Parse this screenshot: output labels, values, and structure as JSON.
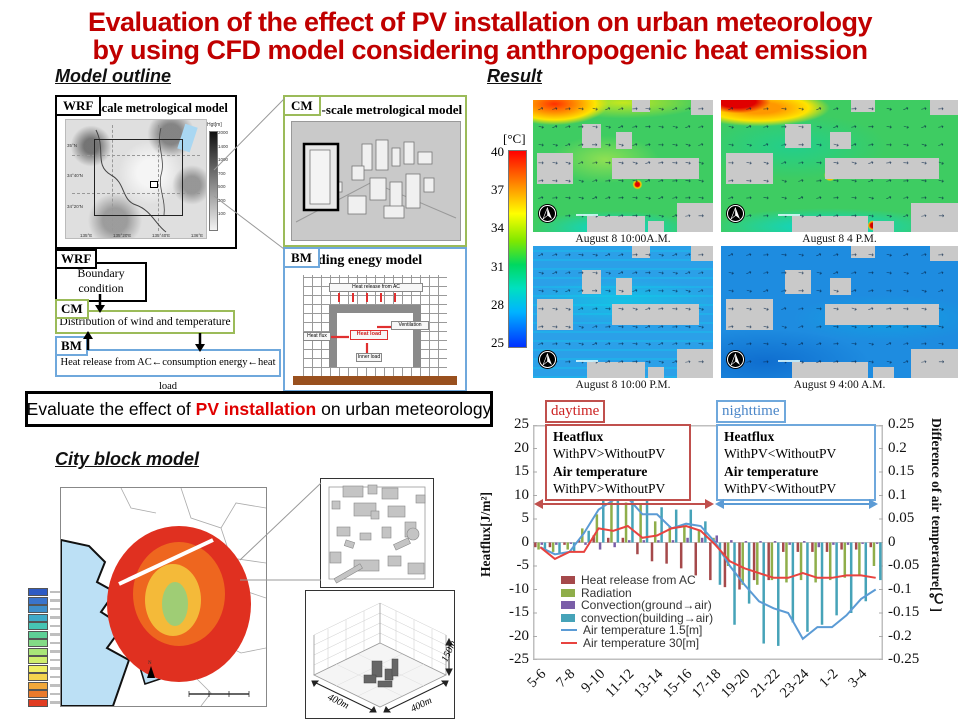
{
  "title": {
    "line1": "Evaluation of the effect of PV installation on urban meteorology",
    "line2": "by using CFD model considering anthropogenic heat emission"
  },
  "headers": {
    "model_outline": "Model outline",
    "result": "Result",
    "city_block": "City block model"
  },
  "model": {
    "wrf": {
      "tag": "WRF",
      "title": "Meso-scale metrological model",
      "legend_title": "Hgt[m]",
      "legend_values": [
        "2000",
        "1400",
        "1000",
        "700",
        "500",
        "300",
        "100"
      ],
      "lat_labels": [
        "35°N",
        "34°40'N",
        "34°20'N"
      ],
      "lon_labels": [
        "135°E",
        "135°20'E",
        "135°40'E",
        "136°E"
      ]
    },
    "cm": {
      "tag": "CM",
      "title": "Micro-scale metrological model"
    },
    "bm": {
      "tag": "BM",
      "title": "Building enegy model",
      "labels": {
        "heat_release": "Heat release from AC",
        "ventilation": "Ventilation",
        "heat_flux": "Heat flux",
        "heat_load": "Heat load",
        "inner_load": "Inner load"
      }
    },
    "flow": {
      "wrf_tag": "WRF",
      "boundary": "Boundary condition",
      "cm_tag": "CM",
      "distribution": "Distribution of wind and temperature",
      "bm_tag": "BM",
      "exchange": "Heat release from AC←consumption energy←heat load"
    }
  },
  "statement": {
    "prefix": "Evaluate the effect of ",
    "highlight": "PV installation",
    "suffix": " on urban meteorology"
  },
  "city_block": {
    "dims": {
      "left": "400m",
      "right": "400m",
      "height": "150m"
    },
    "legend_colors": [
      "#2E5BC4",
      "#3A74CC",
      "#3F8FCB",
      "#3FAAC8",
      "#46C4B4",
      "#5ECF96",
      "#83DB86",
      "#A9E578",
      "#CFEE6E",
      "#EFEF63",
      "#F4D44E",
      "#F1A83B",
      "#EA7A2B",
      "#E13C22"
    ]
  },
  "result": {
    "colorbar": {
      "unit": "[°C]",
      "ticks": [
        "40",
        "37",
        "34",
        "31",
        "28",
        "25"
      ]
    },
    "panels": [
      {
        "caption": "August 8 10:00A.M.",
        "mode": "day1"
      },
      {
        "caption": "August 8 4 P.M.",
        "mode": "day2"
      },
      {
        "caption": "August 8 10:00 P.M.",
        "mode": "night1"
      },
      {
        "caption": "August 9 4:00 A.M.",
        "mode": "night2"
      }
    ]
  },
  "annotations": {
    "daytime": {
      "label": "daytime",
      "l1": "Heatflux",
      "l2": "WithPV>WithoutPV",
      "l3": "Air temperature",
      "l4": "WithPV>WithoutPV"
    },
    "nighttime": {
      "label": "nighttime",
      "l1": "Heatflux",
      "l2": "WithPV<WithoutPV",
      "l3": "Air temperature",
      "l4": "WithPV<WithoutPV"
    }
  },
  "chart_data": {
    "type": "bar+line",
    "x_tick_labels": [
      "5-6",
      "7-8",
      "9-10",
      "11-12",
      "13-14",
      "15-16",
      "17-18",
      "19-20",
      "21-22",
      "23-24",
      "1-2",
      "3-4"
    ],
    "n_groups": 24,
    "ylabel_left": "Heatflux[J/m²]",
    "ylabel_right": "Difference of air temperature[℃]",
    "ylim_left": [
      -25,
      25
    ],
    "ylim_right": [
      -0.25,
      0.25
    ],
    "yticks_left": [
      "25",
      "20",
      "15",
      "10",
      "5",
      "0",
      "-5",
      "-10",
      "-15",
      "-20",
      "-25"
    ],
    "yticks_right": [
      "0.25",
      "0.2",
      "0.15",
      "0.1",
      "0.05",
      "0",
      "-0.05",
      "-0.1",
      "-0.15",
      "-0.2",
      "-0.25"
    ],
    "legend_position": "inside-lower-left",
    "bar_series": [
      {
        "name": "Heat release from AC",
        "color": "#A5494B",
        "values": [
          -1,
          -1,
          -0.5,
          0.5,
          1.5,
          1,
          1,
          -2.5,
          -4,
          -4.5,
          -5.5,
          -7,
          -8,
          -9.5,
          -10,
          -8,
          -8,
          -2,
          -2,
          -2,
          -2,
          -1.5,
          -1.5,
          -1
        ]
      },
      {
        "name": "Radiation",
        "color": "#8FAE4A",
        "values": [
          -1.5,
          -2,
          -1.5,
          3,
          6,
          9.5,
          8.5,
          8,
          4.5,
          3.5,
          3.5,
          2.5,
          1,
          -5,
          -9,
          -9,
          -8,
          -8.5,
          -8,
          -8.5,
          -8,
          -7.5,
          -7,
          -5
        ]
      },
      {
        "name": "Convection(ground→air)",
        "color": "#7A5EA8",
        "values": [
          -0.5,
          -0.5,
          -0.3,
          -0.5,
          -1.5,
          -1,
          0.5,
          0.5,
          0.5,
          0.5,
          1,
          1,
          1.5,
          0.5,
          0.3,
          0.3,
          0.3,
          -0.5,
          0.3,
          -1,
          -0.5,
          -0.5,
          -0.3,
          -0.3
        ]
      },
      {
        "name": "convection(building→air)",
        "color": "#46A3B8",
        "values": [
          -1.5,
          -2.5,
          -2,
          2.5,
          9.5,
          9.5,
          9.5,
          9.5,
          7.5,
          7,
          7,
          4.5,
          -9,
          -17.5,
          -13,
          -21.5,
          -22,
          -17,
          -19,
          -17.5,
          -15.5,
          -15,
          -12.5,
          -8
        ]
      }
    ],
    "line_series": [
      {
        "name": "Air temperature 1.5[m]",
        "color": "#5B9BD5",
        "axis": "right",
        "values": [
          -0.01,
          -0.025,
          -0.02,
          0.02,
          0.07,
          0.09,
          0.095,
          0.06,
          0.06,
          0.03,
          0.04,
          0.035,
          0,
          -0.05,
          -0.09,
          -0.125,
          -0.14,
          -0.15,
          -0.205,
          -0.18,
          -0.18,
          -0.155,
          -0.12,
          -0.1
        ]
      },
      {
        "name": "Air temperature 30[m]",
        "color": "#E8433F",
        "axis": "right",
        "values": [
          -0.01,
          -0.035,
          -0.02,
          -0.02,
          0.03,
          0.025,
          0.035,
          0.01,
          0.015,
          0.03,
          0.035,
          0.025,
          -0.005,
          -0.04,
          -0.055,
          -0.065,
          -0.075,
          -0.075,
          -0.065,
          -0.075,
          -0.075,
          -0.07,
          -0.07,
          -0.075
        ]
      }
    ]
  }
}
